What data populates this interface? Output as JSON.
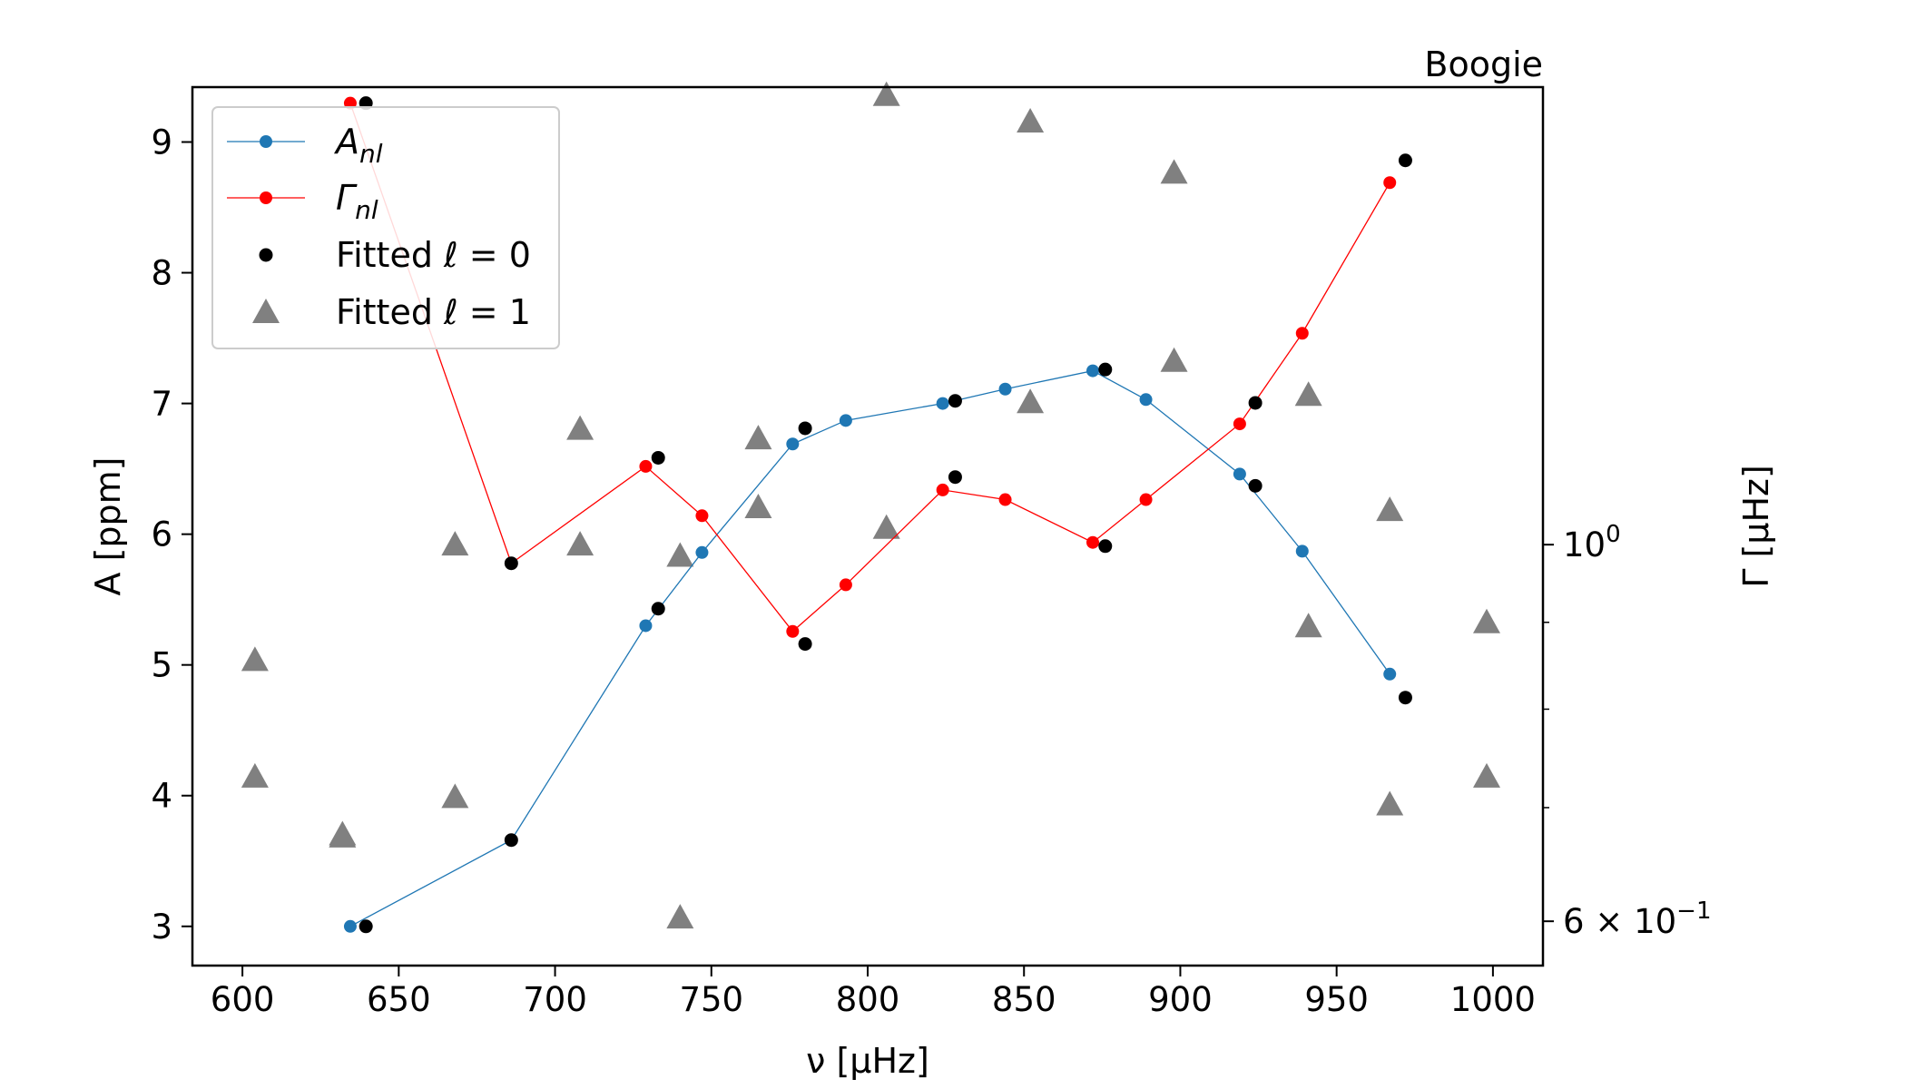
{
  "chart_data": {
    "type": "line",
    "title": "Boogie",
    "xlabel": "ν [μHz]",
    "ylabel_left": "A [ppm]",
    "ylabel_right": "Γ [μHz]",
    "xlim": [
      584,
      1016
    ],
    "ylim_left": [
      2.7,
      9.42
    ],
    "ylim_right": [
      0.565,
      1.86
    ],
    "y_right_scale": "log",
    "x_ticks": [
      "600",
      "650",
      "700",
      "750",
      "800",
      "850",
      "900",
      "950",
      "1000"
    ],
    "y_left_ticks": [
      "3",
      "4",
      "5",
      "6",
      "7",
      "8",
      "9"
    ],
    "y_right_tick_labels": [
      "10^0",
      "6 × 10^-1"
    ],
    "grid": false,
    "legend_position": "top-left",
    "colors": {
      "amplitude": "#1f77b4",
      "linewidth": "#ff0000",
      "fitted_l0": "#000000",
      "fitted_l1": "#808080"
    },
    "legend": [
      {
        "key": "amplitude",
        "label": "A",
        "sub": "nl"
      },
      {
        "key": "linewidth",
        "label": "Γ",
        "sub": "nl"
      },
      {
        "key": "fitted_l0",
        "label": "Fitted ℓ = 0"
      },
      {
        "key": "fitted_l1",
        "label": "Fitted ℓ = 1"
      }
    ],
    "series": [
      {
        "name": "A_nl",
        "axis": "left",
        "x": [
          634.5,
          686,
          729,
          747,
          776,
          793,
          824,
          844,
          872,
          889,
          919,
          939,
          967
        ],
        "y": [
          3.0,
          3.66,
          5.3,
          5.86,
          6.69,
          6.87,
          7.0,
          7.11,
          7.25,
          7.03,
          6.46,
          5.87,
          4.93
        ]
      },
      {
        "name": "Γ_nl",
        "axis": "right",
        "x": [
          634.5,
          686,
          729,
          747,
          776,
          793,
          824,
          844,
          872,
          889,
          919,
          939,
          967
        ],
        "y": [
          1.82,
          0.975,
          1.112,
          1.04,
          0.889,
          0.947,
          1.077,
          1.063,
          1.003,
          1.063,
          1.178,
          1.332,
          1.634
        ]
      },
      {
        "name": "Fitted ℓ = 0 (A)",
        "axis": "left",
        "x": [
          639.5,
          686,
          733,
          780,
          828,
          876,
          924,
          972
        ],
        "y": [
          3.0,
          3.66,
          5.43,
          6.81,
          7.02,
          7.26,
          6.37,
          4.75
        ]
      },
      {
        "name": "Fitted ℓ = 0 (Γ)",
        "axis": "right",
        "x": [
          639.5,
          686,
          733,
          780,
          828,
          876,
          924,
          972
        ],
        "y": [
          1.82,
          0.975,
          1.125,
          0.874,
          1.096,
          0.998,
          1.212,
          1.684
        ]
      },
      {
        "name": "Fitted ℓ = 1",
        "axis": "right",
        "x": [
          604,
          604,
          632,
          632,
          668,
          668,
          708,
          708,
          740,
          740,
          765,
          765,
          806,
          806,
          852,
          852,
          898,
          898,
          941,
          941,
          967,
          967,
          998,
          998
        ],
        "y": [
          0.855,
          0.73,
          0.673,
          0.675,
          1.0,
          0.71,
          1.17,
          1.0,
          0.603,
          0.985,
          1.155,
          1.052,
          1.023,
          1.84,
          1.213,
          1.775,
          1.656,
          1.283,
          1.225,
          0.895,
          1.048,
          0.703,
          0.9,
          0.73
        ]
      }
    ]
  }
}
